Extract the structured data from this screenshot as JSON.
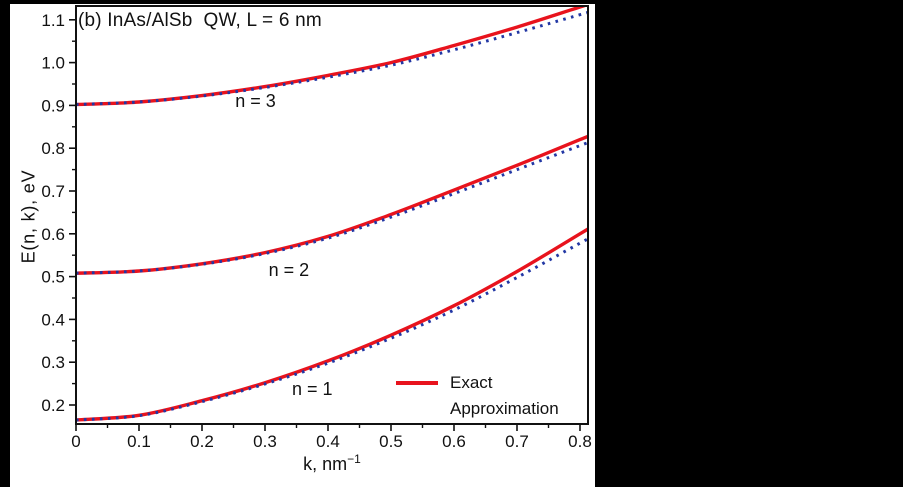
{
  "window": {
    "background": "#000000",
    "panel_background": "#ffffff"
  },
  "chart_data": {
    "type": "line",
    "title": "(b) InAs/AlSb  QW, L = 6 nm",
    "ylabel": "E(n, k), eV",
    "xlabel_prefix": "k, nm",
    "xlabel_exponent": "−1",
    "xlim": [
      0,
      0.813
    ],
    "ylim": [
      0.156,
      1.132
    ],
    "grid": false,
    "x_ticks": [
      0,
      0.1,
      0.2,
      0.3,
      0.4,
      0.5,
      0.6,
      0.7,
      0.8
    ],
    "x_tick_labels": [
      "0",
      "0.1",
      "0.2",
      "0.3",
      "0.4",
      "0.5",
      "0.6",
      "0.7",
      "0.8"
    ],
    "y_ticks": [
      0.2,
      0.3,
      0.4,
      0.5,
      0.6,
      0.7,
      0.8,
      0.9,
      1.0,
      1.1
    ],
    "y_tick_labels": [
      "0.2",
      "0.3",
      "0.4",
      "0.5",
      "0.6",
      "0.7",
      "0.8",
      "0.9",
      "1.0",
      "1.1"
    ],
    "x": [
      0,
      0.1,
      0.2,
      0.3,
      0.4,
      0.5,
      0.6,
      0.7,
      0.8
    ],
    "series": [
      {
        "name": "exact-n3",
        "group": "n = 3",
        "style": "solid",
        "color": "#e8131d",
        "values": [
          0.902,
          0.908,
          0.923,
          0.944,
          0.97,
          1.0,
          1.04,
          1.083,
          1.13
        ]
      },
      {
        "name": "approx-n3",
        "group": "n = 3",
        "style": "dotted",
        "color": "#2237a4",
        "values": [
          0.902,
          0.908,
          0.922,
          0.942,
          0.966,
          0.994,
          1.03,
          1.07,
          1.112
        ]
      },
      {
        "name": "exact-n2",
        "group": "n = 2",
        "style": "solid",
        "color": "#e8131d",
        "values": [
          0.508,
          0.513,
          0.53,
          0.556,
          0.594,
          0.645,
          0.702,
          0.76,
          0.82
        ]
      },
      {
        "name": "approx-n2",
        "group": "n = 2",
        "style": "dotted",
        "color": "#2237a4",
        "values": [
          0.508,
          0.513,
          0.529,
          0.554,
          0.59,
          0.639,
          0.694,
          0.75,
          0.806
        ]
      },
      {
        "name": "exact-n1",
        "group": "n = 1",
        "style": "solid",
        "color": "#e8131d",
        "values": [
          0.165,
          0.176,
          0.21,
          0.252,
          0.303,
          0.363,
          0.432,
          0.512,
          0.6
        ]
      },
      {
        "name": "approx-n1",
        "group": "n = 1",
        "style": "dotted",
        "color": "#2237a4",
        "values": [
          0.165,
          0.175,
          0.208,
          0.249,
          0.298,
          0.356,
          0.422,
          0.498,
          0.578
        ]
      }
    ],
    "curve_labels": [
      {
        "text": "n = 3",
        "k": 0.285,
        "E": 0.91
      },
      {
        "text": "n = 2",
        "k": 0.338,
        "E": 0.515
      },
      {
        "text": "n = 1",
        "k": 0.375,
        "E": 0.237
      }
    ],
    "legend": {
      "position": "bottom-right",
      "entries": [
        {
          "label": "Exact",
          "style": "solid",
          "color": "#e8131d"
        },
        {
          "label": "Approximation",
          "style": "dotted",
          "color": "#2237a4"
        }
      ]
    }
  }
}
